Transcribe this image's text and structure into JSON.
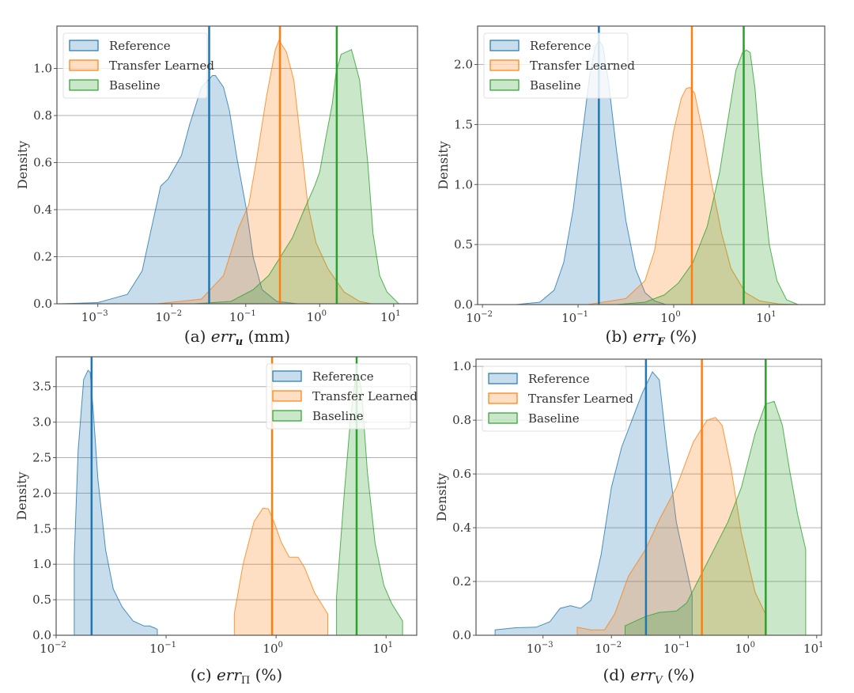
{
  "colors": {
    "reference": "#1f77b4",
    "transfer": "#ff7f0e",
    "baseline": "#2ca02c",
    "grid": "#b0b0b0",
    "axis": "#555555"
  },
  "chart_data": [
    {
      "type": "area",
      "panel": "a",
      "caption": "(a) err_u (mm)",
      "caption_parts": {
        "prefix": "(a) ",
        "var": "err",
        "sub": "u",
        "unit": " (mm)"
      },
      "xlabel": "",
      "ylabel": "Density",
      "xscale": "log",
      "xlim": [
        0.00028,
        21
      ],
      "ylim": [
        0,
        1.18
      ],
      "xticks": [
        {
          "exp": -3
        },
        {
          "exp": -2
        },
        {
          "exp": -1
        },
        {
          "exp": 0
        },
        {
          "exp": 1
        }
      ],
      "yticks": [
        "0.0",
        "0.2",
        "0.4",
        "0.6",
        "0.8",
        "1.0"
      ],
      "grid": "y",
      "legend": {
        "position": "top-left",
        "entries": [
          "Reference",
          "Transfer Learned",
          "Baseline"
        ]
      },
      "series": [
        {
          "name": "Reference",
          "key": "reference",
          "log10_x": [
            -3.5,
            -3.0,
            -2.6,
            -2.4,
            -2.29,
            -2.15,
            -2.05,
            -1.87,
            -1.76,
            -1.6,
            -1.45,
            -1.41,
            -1.3,
            -1.22,
            -1.12,
            -0.99,
            -0.9,
            -0.78,
            -0.58,
            -0.3
          ],
          "density": [
            0,
            0.005,
            0.04,
            0.14,
            0.3,
            0.5,
            0.53,
            0.63,
            0.76,
            0.92,
            0.97,
            0.97,
            0.92,
            0.82,
            0.62,
            0.4,
            0.2,
            0.06,
            0.01,
            0
          ]
        },
        {
          "name": "Transfer Learned",
          "key": "transfer",
          "log10_x": [
            -2.2,
            -1.6,
            -1.3,
            -1.2,
            -1.1,
            -0.96,
            -0.85,
            -0.72,
            -0.6,
            -0.55,
            -0.45,
            -0.35,
            -0.26,
            -0.16,
            -0.05,
            0.11,
            0.33,
            0.54,
            0.7
          ],
          "density": [
            0,
            0.02,
            0.12,
            0.22,
            0.32,
            0.42,
            0.62,
            0.88,
            1.08,
            1.12,
            1.07,
            0.95,
            0.7,
            0.42,
            0.26,
            0.15,
            0.05,
            0.01,
            0
          ]
        },
        {
          "name": "Baseline",
          "key": "baseline",
          "log10_x": [
            -1.7,
            -1.2,
            -0.9,
            -0.69,
            -0.53,
            -0.37,
            -0.21,
            -0.07,
            0.0,
            0.08,
            0.17,
            0.22,
            0.29,
            0.43,
            0.54,
            0.65,
            0.72,
            0.81,
            0.91,
            1.07
          ],
          "density": [
            0,
            0.01,
            0.06,
            0.12,
            0.2,
            0.28,
            0.4,
            0.5,
            0.56,
            0.7,
            0.85,
            0.98,
            1.06,
            1.08,
            0.95,
            0.6,
            0.3,
            0.12,
            0.05,
            0
          ]
        }
      ],
      "vlines": [
        {
          "key": "reference",
          "x": 0.032
        },
        {
          "key": "transfer",
          "x": 0.29
        },
        {
          "key": "baseline",
          "x": 1.7
        }
      ]
    },
    {
      "type": "area",
      "panel": "b",
      "caption": "(b) err_F (%)",
      "caption_parts": {
        "prefix": "(b) ",
        "var": "err",
        "sub": "F",
        "unit": " (%)"
      },
      "xlabel": "",
      "ylabel": "Density",
      "xscale": "log",
      "xlim": [
        0.0089,
        38
      ],
      "ylim": [
        0,
        2.32
      ],
      "xticks": [
        {
          "exp": -2
        },
        {
          "exp": -1
        },
        {
          "exp": 0
        },
        {
          "exp": 1
        }
      ],
      "yticks": [
        "0.0",
        "0.5",
        "1.0",
        "1.5",
        "2.0"
      ],
      "grid": "y",
      "legend": {
        "position": "top-left",
        "entries": [
          "Reference",
          "Transfer Learned",
          "Baseline"
        ]
      },
      "series": [
        {
          "name": "Reference",
          "key": "reference",
          "log10_x": [
            -1.65,
            -1.4,
            -1.25,
            -1.15,
            -1.05,
            -0.95,
            -0.88,
            -0.82,
            -0.78,
            -0.74,
            -0.68,
            -0.6,
            -0.5,
            -0.4,
            -0.3,
            -0.2,
            -0.08
          ],
          "density": [
            0,
            0.02,
            0.12,
            0.35,
            0.8,
            1.45,
            1.9,
            2.15,
            2.2,
            2.15,
            1.85,
            1.3,
            0.7,
            0.3,
            0.1,
            0.03,
            0
          ]
        },
        {
          "name": "Transfer Learned",
          "key": "transfer",
          "log10_x": [
            -0.9,
            -0.5,
            -0.3,
            -0.2,
            -0.1,
            0.0,
            0.08,
            0.13,
            0.17,
            0.22,
            0.3,
            0.4,
            0.5,
            0.6,
            0.75,
            0.9,
            1.1,
            1.3
          ],
          "density": [
            0,
            0.05,
            0.2,
            0.45,
            0.95,
            1.45,
            1.72,
            1.8,
            1.81,
            1.76,
            1.45,
            1.0,
            0.6,
            0.3,
            0.1,
            0.03,
            0.005,
            0
          ]
        },
        {
          "name": "Baseline",
          "key": "baseline",
          "log10_x": [
            -0.6,
            -0.3,
            -0.1,
            0.05,
            0.2,
            0.35,
            0.48,
            0.58,
            0.65,
            0.72,
            0.76,
            0.8,
            0.85,
            0.92,
            1.0,
            1.08,
            1.18,
            1.3
          ],
          "density": [
            0,
            0.02,
            0.08,
            0.18,
            0.35,
            0.65,
            1.1,
            1.6,
            1.95,
            2.1,
            2.12,
            2.1,
            1.8,
            1.1,
            0.5,
            0.2,
            0.04,
            0
          ]
        }
      ],
      "vlines": [
        {
          "key": "reference",
          "x": 0.165
        },
        {
          "key": "transfer",
          "x": 1.55
        },
        {
          "key": "baseline",
          "x": 5.4
        }
      ]
    },
    {
      "type": "area",
      "panel": "c",
      "caption": "(c) err_Π (%)",
      "caption_parts": {
        "prefix": "(c) ",
        "var": "err",
        "sub": "Π",
        "unit": " (%)"
      },
      "xlabel": "",
      "ylabel": "Density",
      "xscale": "log",
      "xlim": [
        0.01,
        19
      ],
      "ylim": [
        0,
        3.92
      ],
      "xticks": [
        {
          "exp": -2
        },
        {
          "exp": -1
        },
        {
          "exp": 0
        },
        {
          "exp": 1
        }
      ],
      "yticks": [
        "0.0",
        "0.5",
        "1.0",
        "1.5",
        "2.0",
        "2.5",
        "3.0",
        "3.5"
      ],
      "grid": "y",
      "legend": {
        "position": "top-right",
        "entries": [
          "Reference",
          "Transfer Learned",
          "Baseline"
        ]
      },
      "series": [
        {
          "name": "Reference",
          "key": "reference",
          "log10_x": [
            -1.835,
            -1.835,
            -1.8,
            -1.75,
            -1.71,
            -1.69,
            -1.66,
            -1.62,
            -1.55,
            -1.48,
            -1.4,
            -1.3,
            -1.2,
            -1.15,
            -1.1,
            -1.08,
            -1.08
          ],
          "density": [
            0,
            1.1,
            2.6,
            3.6,
            3.73,
            3.7,
            3.1,
            2.2,
            1.2,
            0.65,
            0.4,
            0.2,
            0.13,
            0.13,
            0.1,
            0.08,
            0
          ]
        },
        {
          "name": "Transfer Learned",
          "key": "transfer",
          "log10_x": [
            -0.38,
            -0.38,
            -0.3,
            -0.2,
            -0.12,
            -0.07,
            -0.02,
            0.05,
            0.12,
            0.2,
            0.26,
            0.35,
            0.47,
            0.47
          ],
          "density": [
            0,
            0.3,
            1.0,
            1.6,
            1.79,
            1.78,
            1.6,
            1.3,
            1.1,
            1.1,
            0.95,
            0.6,
            0.3,
            0
          ]
        },
        {
          "name": "Baseline",
          "key": "baseline",
          "log10_x": [
            0.55,
            0.55,
            0.62,
            0.68,
            0.72,
            0.75,
            0.78,
            0.83,
            0.9,
            0.98,
            1.05,
            1.15,
            1.15
          ],
          "density": [
            0,
            0.55,
            2.0,
            3.1,
            3.6,
            3.66,
            3.4,
            2.3,
            1.3,
            0.7,
            0.45,
            0.2,
            0
          ]
        }
      ],
      "vlines": [
        {
          "key": "reference",
          "x": 0.021
        },
        {
          "key": "transfer",
          "x": 0.92
        },
        {
          "key": "baseline",
          "x": 5.4
        }
      ]
    },
    {
      "type": "area",
      "panel": "d",
      "caption": "(d) err_V (%)",
      "caption_parts": {
        "prefix": "(d) ",
        "var": "err",
        "sub": "V",
        "unit": " (%)"
      },
      "xlabel": "",
      "ylabel": "Density",
      "xscale": "log",
      "xlim": [
        0.000105,
        11.8
      ],
      "ylim": [
        0,
        1.027
      ],
      "xticks": [
        {
          "exp": -3
        },
        {
          "exp": -2
        },
        {
          "exp": -1
        },
        {
          "exp": 0
        },
        {
          "exp": 1
        }
      ],
      "yticks": [
        "0.0",
        "0.2",
        "0.4",
        "0.6",
        "0.8",
        "1.0"
      ],
      "grid": "y",
      "legend": {
        "position": "top-left",
        "entries": [
          "Reference",
          "Transfer Learned",
          "Baseline"
        ]
      },
      "series": [
        {
          "name": "Reference",
          "key": "reference",
          "log10_x": [
            -3.7,
            -3.7,
            -3.4,
            -3.1,
            -2.9,
            -2.75,
            -2.6,
            -2.45,
            -2.3,
            -2.15,
            -2.0,
            -1.85,
            -1.7,
            -1.55,
            -1.4,
            -1.3,
            -1.2,
            -1.05,
            -0.82,
            -0.82
          ],
          "density": [
            0,
            0.02,
            0.028,
            0.03,
            0.05,
            0.1,
            0.11,
            0.1,
            0.13,
            0.3,
            0.55,
            0.7,
            0.8,
            0.9,
            0.98,
            0.95,
            0.72,
            0.42,
            0.15,
            0
          ]
        },
        {
          "name": "Transfer Learned",
          "key": "transfer",
          "log10_x": [
            -2.5,
            -2.5,
            -2.3,
            -2.1,
            -1.95,
            -1.75,
            -1.5,
            -1.3,
            -1.05,
            -0.8,
            -0.6,
            -0.48,
            -0.38,
            -0.25,
            -0.1,
            0.1,
            0.25,
            0.25
          ],
          "density": [
            0,
            0.03,
            0.02,
            0.02,
            0.08,
            0.22,
            0.32,
            0.43,
            0.55,
            0.72,
            0.8,
            0.81,
            0.78,
            0.62,
            0.38,
            0.16,
            0.08,
            0
          ]
        },
        {
          "name": "Baseline",
          "key": "baseline",
          "log10_x": [
            -1.8,
            -1.8,
            -1.5,
            -1.3,
            -1.05,
            -0.9,
            -0.7,
            -0.5,
            -0.3,
            -0.1,
            0.1,
            0.25,
            0.38,
            0.5,
            0.6,
            0.72,
            0.84,
            0.84
          ],
          "density": [
            0,
            0.035,
            0.07,
            0.085,
            0.09,
            0.12,
            0.22,
            0.32,
            0.42,
            0.55,
            0.75,
            0.86,
            0.87,
            0.78,
            0.62,
            0.45,
            0.32,
            0
          ]
        }
      ],
      "vlines": [
        {
          "key": "reference",
          "x": 0.032
        },
        {
          "key": "transfer",
          "x": 0.21
        },
        {
          "key": "baseline",
          "x": 1.8
        }
      ]
    }
  ]
}
